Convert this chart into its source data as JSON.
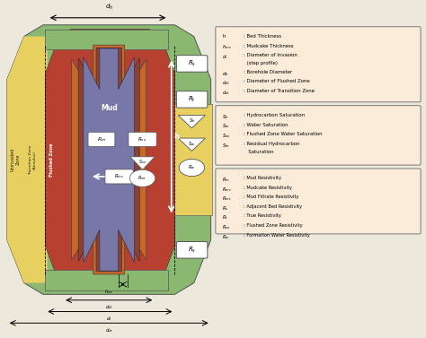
{
  "bg_color": "#ede8dc",
  "color_green": "#8ab870",
  "color_green_dark": "#6a9850",
  "color_red": "#b84030",
  "color_orange": "#c86828",
  "color_brown": "#904030",
  "color_mud": "#7878a8",
  "color_mudcake": "#803030",
  "color_yellow": "#e8d060",
  "color_white": "#ffffff",
  "color_box_bg": "#faecd8",
  "b1_entries": [
    [
      "h",
      ": Bed Thickness"
    ],
    [
      "h_mc",
      ": Mudcake Thickness"
    ],
    [
      "d_i",
      ": Diameter of Invasion\n  (step profile)"
    ],
    [
      "d_h",
      ": Borehole Diameter"
    ],
    [
      "d_zf",
      ": Diameter of Flushed Zone"
    ],
    [
      "d_zt",
      ": Diameter of Transition Zone"
    ]
  ],
  "b2_entries": [
    [
      "S_h",
      ": Hydrocarbon Saturation"
    ],
    [
      "S_w",
      ": Water Saturation"
    ],
    [
      "S_xo",
      ": Flushed Zone Water Saturation"
    ],
    [
      "S_hr",
      ": Residual Hydrocarbon\n    Saturation"
    ]
  ],
  "b3_entries": [
    [
      "R_m",
      ": Mud Resistivity"
    ],
    [
      "R_mc",
      ": Mudcake Resistivity"
    ],
    [
      "R_mt",
      ": Mud Filtrate Resistivity"
    ],
    [
      "R_s",
      ": Adjacent Bed Resistivity"
    ],
    [
      "R_t",
      ": True Resistivity"
    ],
    [
      "R_xo",
      ": Flushed Zone Resistivity"
    ],
    [
      "R_w",
      ": Formation Water Resistivity"
    ]
  ]
}
